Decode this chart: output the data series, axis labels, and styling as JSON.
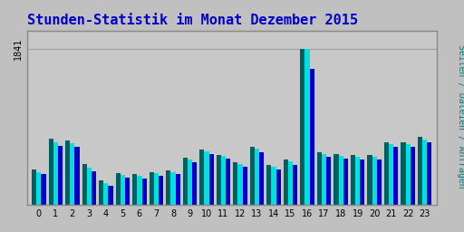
{
  "title": "Stunden-Statistik im Monat Dezember 2015",
  "ylabel": "Seiten / Dateien / Anfragen",
  "ylabel_color": "#008080",
  "hours": [
    0,
    1,
    2,
    3,
    4,
    5,
    6,
    7,
    8,
    9,
    10,
    11,
    12,
    13,
    14,
    15,
    16,
    17,
    18,
    19,
    20,
    21,
    22,
    23
  ],
  "seiten": [
    420,
    780,
    760,
    480,
    290,
    370,
    360,
    390,
    410,
    560,
    650,
    590,
    500,
    680,
    470,
    530,
    1841,
    620,
    600,
    590,
    590,
    740,
    740,
    800
  ],
  "dateien": [
    390,
    740,
    730,
    440,
    260,
    350,
    340,
    370,
    390,
    540,
    630,
    575,
    480,
    660,
    450,
    510,
    1841,
    600,
    580,
    570,
    570,
    720,
    720,
    770
  ],
  "anfragen": [
    360,
    690,
    680,
    400,
    230,
    320,
    310,
    340,
    360,
    500,
    600,
    545,
    450,
    620,
    420,
    475,
    1600,
    570,
    550,
    540,
    540,
    680,
    680,
    735
  ],
  "color_seiten": "#006060",
  "color_dateien": "#00e0e0",
  "color_anfragen": "#0000cc",
  "bg_color": "#c0c0c0",
  "plot_bg": "#c8c8c8",
  "title_color": "#0000cc",
  "ytick_label": "1841",
  "bar_width": 0.28,
  "ylim": [
    0,
    2050
  ]
}
